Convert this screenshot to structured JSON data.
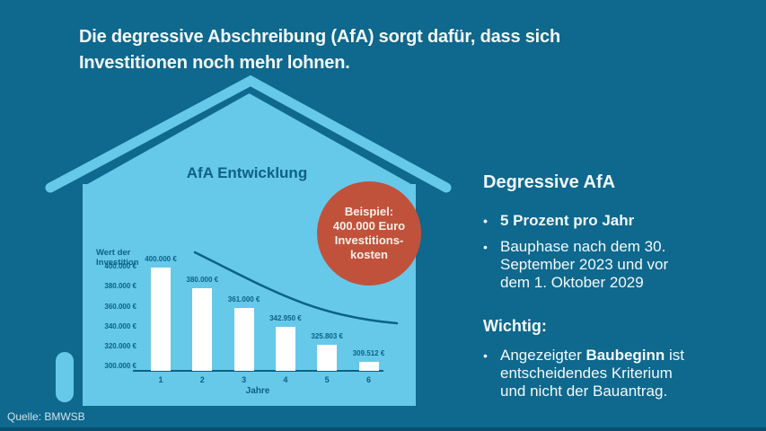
{
  "theme": {
    "bg": "#0f688d",
    "light": "#66c9e9",
    "ink": "#0e6187",
    "red": "#c0523c",
    "text-light": "#f2fafd",
    "circle-text": "#f8f1e9",
    "strip": "#0a4f70"
  },
  "header": {
    "title_lines": [
      "Die degressive Abschreibung (AfA) sorgt dafür, dass sich",
      "Investitionen noch mehr lohnen."
    ]
  },
  "chart_data": {
    "type": "bar",
    "title": "AfA Entwicklung",
    "ylabel_lines": [
      "Wert der",
      "Investition"
    ],
    "xlabel": "Jahre",
    "categories": [
      "1",
      "2",
      "3",
      "4",
      "5",
      "6"
    ],
    "values": [
      400000,
      380000,
      361000,
      342950,
      325803,
      309512
    ],
    "bar_labels": [
      "400.000 €",
      "380.000 €",
      "361.000 €",
      "342.950 €",
      "325.803 €",
      "309.512 €"
    ],
    "y_ticks": [
      "400.000 €",
      "380.000 €",
      "360.000 €",
      "340.000 €",
      "320.000 €",
      "300.000 €"
    ],
    "ylim": [
      300000,
      400000
    ],
    "grid": false,
    "bar_color": "#ffffff",
    "legend": null,
    "overlay": "declining trend curve from year 2 to year 6"
  },
  "badge": {
    "lines": [
      "Beispiel:",
      "400.000 Euro",
      "Investitions-",
      "kosten"
    ]
  },
  "info_panel": {
    "heading": "Degressive AfA",
    "bullet1": "5 Prozent pro Jahr",
    "bullet2_lines": [
      "Bauphase nach dem 30.",
      "September 2023 und vor",
      "dem 1. Oktober 2029"
    ],
    "wichtig_heading": "Wichtig:",
    "wichtig_bullet": {
      "pre": "Angezeigter ",
      "bold": "Baubeginn",
      "post": " ist"
    },
    "wichtig_lines": [
      "entscheidendes Kriterium",
      "und nicht der Bauantrag."
    ]
  },
  "footer": {
    "source": "Quelle: BMWSB"
  }
}
